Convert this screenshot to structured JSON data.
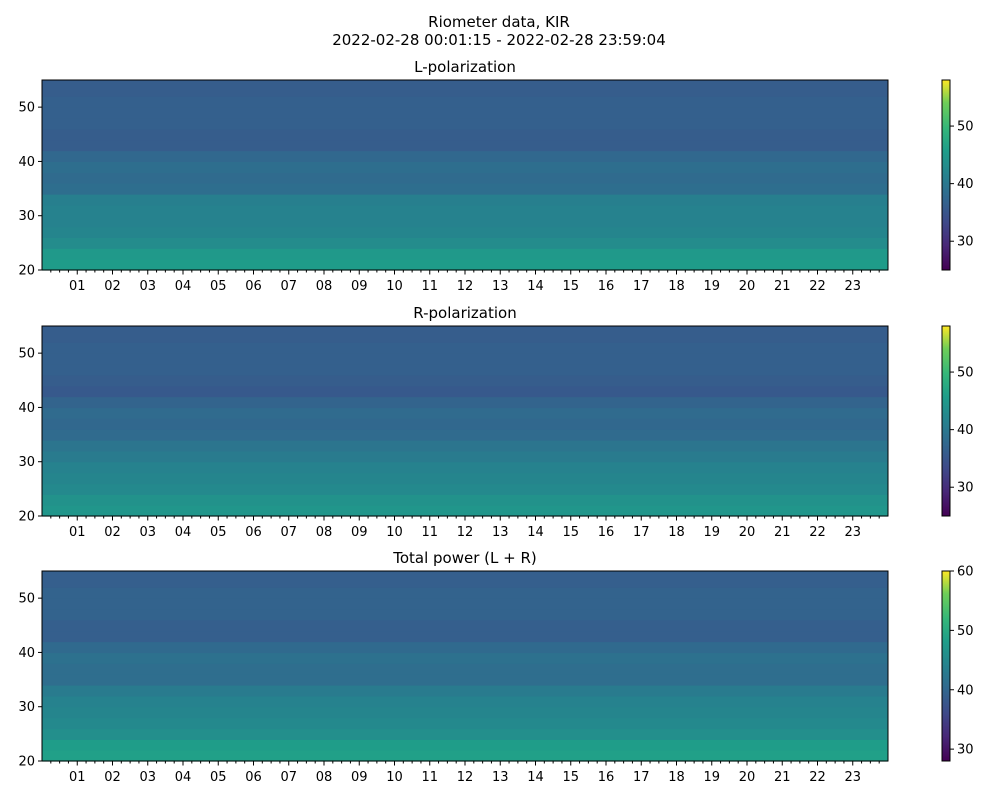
{
  "figure": {
    "title_line1": "Riometer data, KIR",
    "title_line2": "2022-02-28 00:01:15 - 2022-02-28 23:59:04"
  },
  "colormap": "viridis",
  "chart_data": [
    {
      "type": "heatmap",
      "title": "L-polarization",
      "xlabel": "",
      "ylabel": "",
      "x_range_hours": [
        0,
        24
      ],
      "ylim": [
        20,
        55
      ],
      "x_tick_labels": [
        "01",
        "02",
        "03",
        "04",
        "05",
        "06",
        "07",
        "08",
        "09",
        "10",
        "11",
        "12",
        "13",
        "14",
        "15",
        "16",
        "17",
        "18",
        "19",
        "20",
        "21",
        "22",
        "23"
      ],
      "y_ticks": [
        20,
        30,
        40,
        50
      ],
      "colorbar": {
        "range": [
          25,
          58
        ],
        "ticks": [
          30,
          40,
          50
        ]
      },
      "approx_profile_vs_y": [
        {
          "y": 20,
          "value": 45
        },
        {
          "y": 22,
          "value": 46
        },
        {
          "y": 24,
          "value": 44
        },
        {
          "y": 26,
          "value": 42
        },
        {
          "y": 28,
          "value": 42
        },
        {
          "y": 30,
          "value": 41
        },
        {
          "y": 32,
          "value": 42
        },
        {
          "y": 34,
          "value": 40
        },
        {
          "y": 36,
          "value": 37
        },
        {
          "y": 38,
          "value": 39
        },
        {
          "y": 40,
          "value": 38
        },
        {
          "y": 42,
          "value": 37
        },
        {
          "y": 44,
          "value": 35
        },
        {
          "y": 46,
          "value": 37
        },
        {
          "y": 48,
          "value": 36
        },
        {
          "y": 50,
          "value": 37
        },
        {
          "y": 52,
          "value": 36
        },
        {
          "y": 55,
          "value": 36
        }
      ]
    },
    {
      "type": "heatmap",
      "title": "R-polarization",
      "xlabel": "",
      "ylabel": "",
      "x_range_hours": [
        0,
        24
      ],
      "ylim": [
        20,
        55
      ],
      "x_tick_labels": [
        "01",
        "02",
        "03",
        "04",
        "05",
        "06",
        "07",
        "08",
        "09",
        "10",
        "11",
        "12",
        "13",
        "14",
        "15",
        "16",
        "17",
        "18",
        "19",
        "20",
        "21",
        "22",
        "23"
      ],
      "y_ticks": [
        20,
        30,
        40,
        50
      ],
      "colorbar": {
        "range": [
          25,
          58
        ],
        "ticks": [
          30,
          40,
          50
        ]
      },
      "approx_profile_vs_y": [
        {
          "y": 20,
          "value": 44
        },
        {
          "y": 22,
          "value": 45
        },
        {
          "y": 24,
          "value": 43
        },
        {
          "y": 26,
          "value": 42
        },
        {
          "y": 28,
          "value": 42
        },
        {
          "y": 30,
          "value": 41
        },
        {
          "y": 32,
          "value": 40
        },
        {
          "y": 34,
          "value": 39
        },
        {
          "y": 36,
          "value": 37
        },
        {
          "y": 38,
          "value": 38
        },
        {
          "y": 40,
          "value": 38
        },
        {
          "y": 42,
          "value": 36
        },
        {
          "y": 44,
          "value": 35
        },
        {
          "y": 46,
          "value": 37
        },
        {
          "y": 48,
          "value": 36
        },
        {
          "y": 50,
          "value": 37
        },
        {
          "y": 52,
          "value": 36
        },
        {
          "y": 55,
          "value": 36
        }
      ]
    },
    {
      "type": "heatmap",
      "title": "Total power (L + R)",
      "xlabel": "",
      "ylabel": "",
      "x_range_hours": [
        0,
        24
      ],
      "ylim": [
        20,
        55
      ],
      "x_tick_labels": [
        "01",
        "02",
        "03",
        "04",
        "05",
        "06",
        "07",
        "08",
        "09",
        "10",
        "11",
        "12",
        "13",
        "14",
        "15",
        "16",
        "17",
        "18",
        "19",
        "20",
        "21",
        "22",
        "23"
      ],
      "y_ticks": [
        20,
        30,
        40,
        50
      ],
      "colorbar": {
        "range": [
          28,
          60
        ],
        "ticks": [
          30,
          40,
          50,
          60
        ]
      },
      "approx_profile_vs_y": [
        {
          "y": 20,
          "value": 48
        },
        {
          "y": 22,
          "value": 49
        },
        {
          "y": 24,
          "value": 47
        },
        {
          "y": 26,
          "value": 45
        },
        {
          "y": 28,
          "value": 45
        },
        {
          "y": 30,
          "value": 44
        },
        {
          "y": 32,
          "value": 44
        },
        {
          "y": 34,
          "value": 42
        },
        {
          "y": 36,
          "value": 40
        },
        {
          "y": 38,
          "value": 42
        },
        {
          "y": 40,
          "value": 41
        },
        {
          "y": 42,
          "value": 40
        },
        {
          "y": 44,
          "value": 38
        },
        {
          "y": 46,
          "value": 40
        },
        {
          "y": 48,
          "value": 39
        },
        {
          "y": 50,
          "value": 40
        },
        {
          "y": 52,
          "value": 39
        },
        {
          "y": 55,
          "value": 39
        }
      ]
    }
  ]
}
